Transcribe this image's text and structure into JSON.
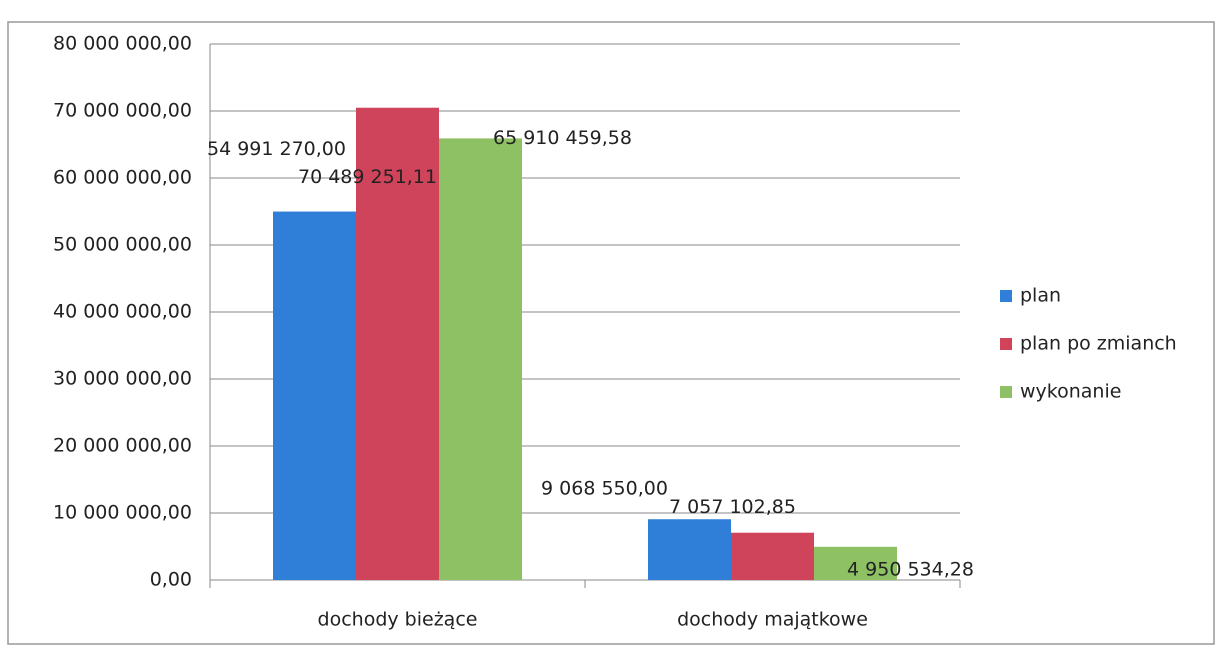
{
  "chart_data": {
    "type": "bar",
    "categories": [
      "dochody bieżące",
      "dochody majątkowe"
    ],
    "series": [
      {
        "name": "plan",
        "color": "#2f7fd8",
        "values": [
          54991270.0,
          9068550.0
        ],
        "value_labels": [
          "54 991 270,00",
          "9 068 550,00"
        ]
      },
      {
        "name": "plan po zmianch",
        "color": "#d0445b",
        "values": [
          70489251.11,
          7057102.85
        ],
        "value_labels": [
          "70 489 251,11",
          "7 057 102,85"
        ]
      },
      {
        "name": "wykonanie",
        "color": "#8dc164",
        "values": [
          65910459.58,
          4950534.28
        ],
        "value_labels": [
          "65 910 459,58",
          "4 950 534,28"
        ]
      }
    ],
    "ylim": [
      0,
      80000000
    ],
    "yticks": [
      {
        "value": 0,
        "label": "0,00"
      },
      {
        "value": 10000000,
        "label": "10 000 000,00"
      },
      {
        "value": 20000000,
        "label": "20 000 000,00"
      },
      {
        "value": 30000000,
        "label": "30 000 000,00"
      },
      {
        "value": 40000000,
        "label": "40 000 000,00"
      },
      {
        "value": 50000000,
        "label": "50 000 000,00"
      },
      {
        "value": 60000000,
        "label": "60 000 000,00"
      },
      {
        "value": 70000000,
        "label": "70 000 000,00"
      },
      {
        "value": 80000000,
        "label": "80 000 000,00"
      }
    ],
    "grid": true,
    "legend": "right"
  }
}
